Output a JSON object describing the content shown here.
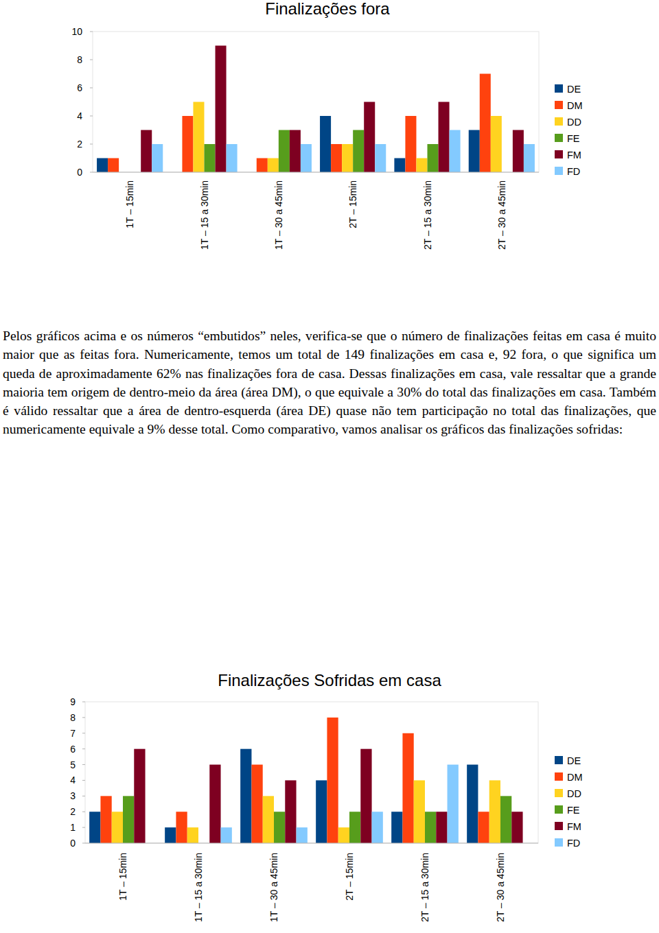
{
  "chart_data": [
    {
      "type": "bar",
      "title": "Finalizações fora",
      "categories": [
        "1T – 15min",
        "1T – 15 a 30min",
        "1T – 30 a 45min",
        "2T – 15min",
        "2T – 15 a 30min",
        "2T – 30 a 45min"
      ],
      "series": [
        {
          "name": "DE",
          "color": "#004586",
          "values": [
            1,
            0,
            0,
            4,
            1,
            3
          ]
        },
        {
          "name": "DM",
          "color": "#ff420e",
          "values": [
            1,
            4,
            1,
            2,
            4,
            7
          ]
        },
        {
          "name": "DD",
          "color": "#ffd320",
          "values": [
            0,
            5,
            1,
            2,
            1,
            4
          ]
        },
        {
          "name": "FE",
          "color": "#579d1c",
          "values": [
            0,
            2,
            3,
            3,
            2,
            0
          ]
        },
        {
          "name": "FM",
          "color": "#7e0021",
          "values": [
            3,
            9,
            3,
            5,
            5,
            3
          ]
        },
        {
          "name": "FD",
          "color": "#83caff",
          "values": [
            2,
            2,
            2,
            2,
            3,
            2
          ]
        }
      ],
      "ylim": [
        0,
        10
      ],
      "yticks": [
        0,
        2,
        4,
        6,
        8,
        10
      ],
      "grid": false,
      "legend": "right"
    },
    {
      "type": "bar",
      "title": "Finalizações Sofridas em casa",
      "categories": [
        "1T – 15min",
        "1T – 15 a 30min",
        "1T – 30 a 45min",
        "2T – 15min",
        "2T – 15 a 30min",
        "2T – 30 a 45min"
      ],
      "series": [
        {
          "name": "DE",
          "color": "#004586",
          "values": [
            2,
            1,
            6,
            4,
            2,
            5
          ]
        },
        {
          "name": "DM",
          "color": "#ff420e",
          "values": [
            3,
            2,
            5,
            8,
            7,
            2
          ]
        },
        {
          "name": "DD",
          "color": "#ffd320",
          "values": [
            2,
            1,
            3,
            1,
            4,
            4
          ]
        },
        {
          "name": "FE",
          "color": "#579d1c",
          "values": [
            3,
            0,
            2,
            2,
            2,
            3
          ]
        },
        {
          "name": "FM",
          "color": "#7e0021",
          "values": [
            6,
            5,
            4,
            6,
            2,
            2
          ]
        },
        {
          "name": "FD",
          "color": "#83caff",
          "values": [
            0,
            1,
            1,
            2,
            5,
            0
          ]
        }
      ],
      "ylim": [
        0,
        9
      ],
      "yticks": [
        0,
        1,
        2,
        3,
        4,
        5,
        6,
        7,
        8,
        9
      ],
      "grid": false,
      "legend": "right"
    }
  ],
  "document": {
    "paragraph": "Pelos gráficos acima e os números “embutidos” neles, verifica-se que o número de finalizações feitas em casa é muito maior que as feitas fora. Numericamente, temos um total de 149 finalizações em casa e, 92 fora, o que significa um queda de aproximadamente 62% nas finalizações fora de casa. Dessas finalizações em casa, vale ressaltar que a grande maioria tem origem de dentro-meio da área (área DM), o que equivale a 30% do total das finalizações em casa. Também é válido ressaltar que a área de dentro-esquerda (área DE) quase não tem participação no total das finalizações, que numericamente equivale a 9% desse total. Como comparativo, vamos analisar os gráficos das finalizações sofridas:"
  }
}
